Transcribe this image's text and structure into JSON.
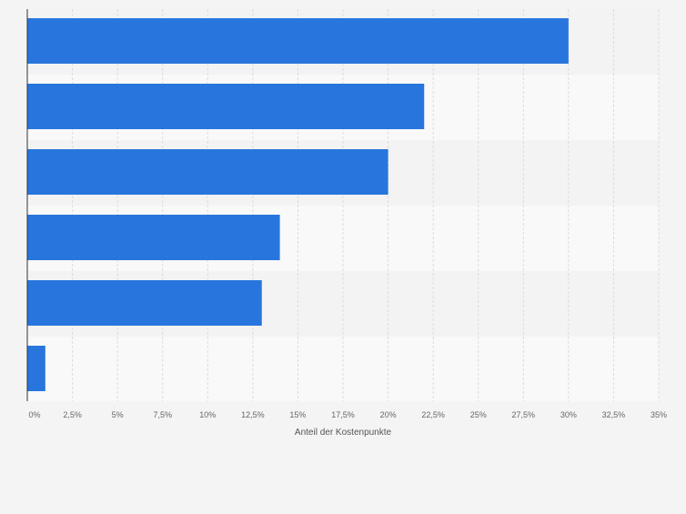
{
  "chart_data": {
    "type": "bar",
    "orientation": "horizontal",
    "title": "",
    "xlabel": "Anteil der Kostenpunkte",
    "ylabel": "",
    "categories": [
      "",
      "",
      "",
      "",
      "",
      ""
    ],
    "values": [
      30,
      22,
      20,
      14,
      13,
      1
    ],
    "xlim": [
      0,
      35
    ],
    "xticks": [
      "0%",
      "2,5%",
      "5%",
      "7,5%",
      "10%",
      "12,5%",
      "15%",
      "17,5%",
      "20%",
      "22,5%",
      "25%",
      "27,5%",
      "30%",
      "32,5%",
      "35%"
    ],
    "grid": true,
    "legend": "none",
    "bar_color": "#2876dd",
    "band_colors": [
      "#f3f3f3",
      "#f9f9f9"
    ]
  }
}
